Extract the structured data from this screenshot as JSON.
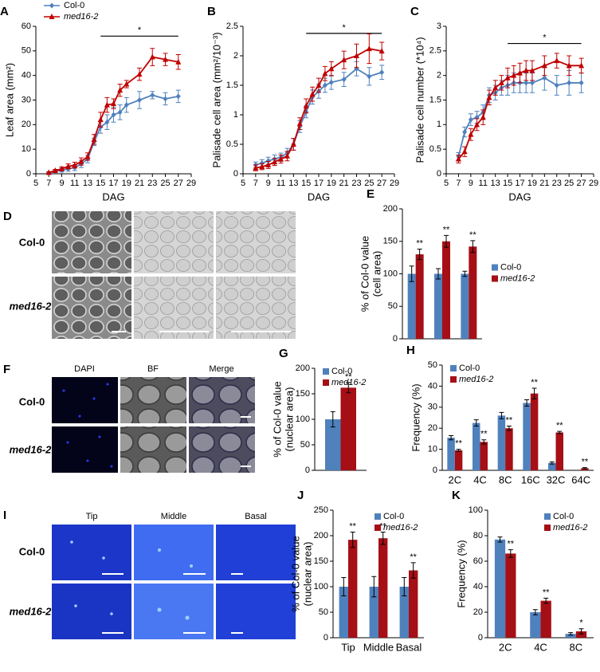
{
  "chart_data": [
    {
      "type": "line",
      "panel": "A",
      "xlabel": "DAG",
      "ylabel": [
        "Leaf area (mm²)"
      ],
      "x": [
        7,
        8,
        9,
        10,
        11,
        12,
        13,
        14,
        15,
        16,
        17,
        18,
        19,
        21,
        23,
        25,
        27
      ],
      "xlim": [
        5,
        29
      ],
      "xticks": [
        5,
        7,
        9,
        11,
        13,
        15,
        17,
        19,
        21,
        23,
        25,
        27,
        29
      ],
      "ylim": [
        0,
        60
      ],
      "yticks": [
        0,
        10,
        20,
        30,
        40,
        50,
        60
      ],
      "legend": "upper left",
      "annotation": {
        "text": "*",
        "x": [
          15,
          27
        ],
        "y": 56
      },
      "series": [
        {
          "name": "Col-0",
          "color": "#4f81bd",
          "marker": "diamond",
          "font_style": "normal",
          "values": [
            0.3,
            1,
            1.5,
            2,
            2.5,
            4,
            6,
            13,
            19,
            21,
            24,
            25,
            28,
            30,
            32,
            30.5,
            31.5
          ],
          "errors": [
            0.3,
            0.5,
            0.8,
            1,
            1.2,
            1.5,
            1.5,
            1.5,
            2.5,
            3,
            3,
            3,
            3,
            3.5,
            1.5,
            2.5,
            2.5
          ]
        },
        {
          "name": "med16-2",
          "color": "#c00000",
          "marker": "triangle",
          "font_style": "italic",
          "values": [
            0.5,
            1.3,
            2,
            3,
            3.5,
            5,
            7,
            14,
            22,
            28,
            28.5,
            34,
            36.5,
            40.5,
            47.5,
            46.5,
            45.5
          ],
          "errors": [
            0.3,
            0.5,
            0.8,
            1,
            1.2,
            1.5,
            1.5,
            2,
            3,
            3,
            2,
            2.5,
            1.5,
            2.5,
            3.5,
            2.5,
            3
          ]
        }
      ]
    },
    {
      "type": "line",
      "panel": "B",
      "xlabel": "DAG",
      "ylabel": [
        "Palisade cell area (mm²/10⁻³)"
      ],
      "x": [
        7,
        8,
        9,
        10,
        11,
        12,
        13,
        14,
        15,
        16,
        17,
        18,
        19,
        21,
        23,
        25,
        27
      ],
      "xlim": [
        5,
        29
      ],
      "xticks": [
        5,
        7,
        9,
        11,
        13,
        15,
        17,
        19,
        21,
        23,
        25,
        27,
        29
      ],
      "ylim": [
        0,
        2.5
      ],
      "yticks": [
        0,
        0.5,
        1,
        1.5,
        2,
        2.5
      ],
      "legend": "none",
      "annotation": {
        "text": "*",
        "x": [
          15,
          27
        ],
        "y": 2.38
      },
      "series": [
        {
          "name": "Col-0",
          "color": "#4f81bd",
          "marker": "diamond",
          "font_style": "normal",
          "values": [
            0.15,
            0.18,
            0.22,
            0.25,
            0.28,
            0.35,
            0.5,
            0.8,
            1.05,
            1.3,
            1.4,
            1.5,
            1.55,
            1.6,
            1.78,
            1.65,
            1.72
          ],
          "errors": [
            0.05,
            0.06,
            0.06,
            0.07,
            0.07,
            0.08,
            0.1,
            0.1,
            0.1,
            0.12,
            0.12,
            0.12,
            0.12,
            0.12,
            0.12,
            0.15,
            0.12
          ]
        },
        {
          "name": "med16-2",
          "color": "#c00000",
          "marker": "triangle",
          "font_style": "italic",
          "values": [
            0.1,
            0.12,
            0.15,
            0.2,
            0.25,
            0.3,
            0.5,
            0.85,
            1.15,
            1.35,
            1.5,
            1.7,
            1.78,
            1.93,
            2,
            2.12,
            2.08
          ],
          "errors": [
            0.05,
            0.05,
            0.06,
            0.06,
            0.07,
            0.08,
            0.1,
            0.1,
            0.12,
            0.12,
            0.12,
            0.12,
            0.12,
            0.15,
            0.2,
            0.25,
            0.15
          ]
        }
      ]
    },
    {
      "type": "line",
      "panel": "C",
      "xlabel": "DAG",
      "ylabel": [
        "Palisade cell number (*10⁴)"
      ],
      "x": [
        7,
        8,
        9,
        10,
        11,
        12,
        13,
        14,
        15,
        16,
        17,
        18,
        19,
        21,
        23,
        25,
        27
      ],
      "xlim": [
        5,
        29
      ],
      "xticks": [
        5,
        7,
        9,
        11,
        13,
        15,
        17,
        19,
        21,
        23,
        25,
        27,
        29
      ],
      "ylim": [
        0,
        3
      ],
      "yticks": [
        0,
        0.5,
        1,
        1.5,
        2,
        2.5,
        3
      ],
      "legend": "none",
      "annotation": {
        "text": "*",
        "x": [
          15,
          27
        ],
        "y": 2.65
      },
      "series": [
        {
          "name": "Col-0",
          "color": "#4f81bd",
          "marker": "diamond",
          "font_style": "normal",
          "values": [
            0.35,
            0.85,
            1.1,
            1.15,
            1.25,
            1.6,
            1.65,
            1.75,
            1.8,
            1.85,
            1.85,
            1.85,
            1.85,
            1.95,
            1.8,
            1.85,
            1.85
          ],
          "errors": [
            0.08,
            0.1,
            0.12,
            0.12,
            0.15,
            0.15,
            0.15,
            0.15,
            0.2,
            0.2,
            0.2,
            0.2,
            0.2,
            0.25,
            0.2,
            0.25,
            0.2
          ]
        },
        {
          "name": "med16-2",
          "color": "#c00000",
          "marker": "triangle",
          "font_style": "italic",
          "values": [
            0.3,
            0.45,
            0.8,
            1,
            1.15,
            1.55,
            1.75,
            1.85,
            1.95,
            2,
            2.05,
            2.1,
            2.1,
            2.2,
            2.3,
            2.2,
            2.2
          ],
          "errors": [
            0.08,
            0.1,
            0.12,
            0.12,
            0.15,
            0.15,
            0.15,
            0.15,
            0.2,
            0.2,
            0.2,
            0.2,
            0.2,
            0.2,
            0.15,
            0.2,
            0.15
          ]
        }
      ]
    },
    {
      "type": "bar",
      "panel": "E",
      "ylabel": [
        "% of Col-0 value",
        "(cell area)"
      ],
      "categories": [
        null,
        null,
        null
      ],
      "ylim": [
        0,
        200
      ],
      "yticks": [
        0,
        50,
        100,
        150,
        200
      ],
      "legend": "right",
      "series": [
        {
          "name": "Col-0",
          "color": "#4f81bd",
          "font_style": "normal",
          "values": [
            100,
            100,
            100
          ],
          "errors": [
            12,
            8,
            4
          ],
          "markers": [
            null,
            null,
            null
          ]
        },
        {
          "name": "med16-2",
          "color": "#a50f15",
          "font_style": "italic",
          "values": [
            130,
            150,
            142
          ],
          "errors": [
            8,
            9,
            9
          ],
          "markers": [
            "**",
            "**",
            "**"
          ]
        }
      ]
    },
    {
      "type": "bar",
      "panel": "G",
      "ylabel": [
        "% of Col-0 value",
        "(nuclear area)"
      ],
      "categories": [
        null
      ],
      "ylim": [
        0,
        200
      ],
      "yticks": [
        0,
        50,
        100,
        150,
        200
      ],
      "legend": "upper left",
      "series": [
        {
          "name": "Col-0",
          "color": "#4f81bd",
          "font_style": "normal",
          "values": [
            100
          ],
          "errors": [
            15
          ],
          "markers": [
            null
          ]
        },
        {
          "name": "med16-2",
          "color": "#a50f15",
          "font_style": "italic",
          "values": [
            162
          ],
          "errors": [
            10
          ],
          "markers": [
            "**"
          ]
        }
      ]
    },
    {
      "type": "bar",
      "panel": "H",
      "ylabel": [
        "Frequency (%)"
      ],
      "categories": [
        "2C",
        "4C",
        "8C",
        "16C",
        "32C",
        "64C"
      ],
      "ylim": [
        0,
        50
      ],
      "yticks": [
        0,
        10,
        20,
        30,
        40,
        50
      ],
      "legend": "upper left",
      "series": [
        {
          "name": "Col-0",
          "color": "#4f81bd",
          "font_style": "normal",
          "values": [
            15.5,
            22.5,
            26,
            32,
            3.5,
            0
          ],
          "errors": [
            1,
            1.5,
            1.5,
            1.5,
            0.5,
            0
          ],
          "markers": [
            null,
            null,
            null,
            null,
            null,
            null
          ]
        },
        {
          "name": "med16-2",
          "color": "#a50f15",
          "font_style": "italic",
          "values": [
            9.5,
            13.5,
            20,
            36.5,
            18,
            1
          ],
          "errors": [
            0.5,
            1,
            1,
            2.5,
            0.5,
            0.3
          ],
          "markers": [
            "**",
            "**",
            "**",
            "**",
            "**",
            "**"
          ]
        }
      ]
    },
    {
      "type": "bar",
      "panel": "J",
      "ylabel": [
        "% of Col-0 value",
        "(nuclear area)"
      ],
      "categories": [
        "Tip",
        "Middle",
        "Basal"
      ],
      "ylim": [
        0,
        250
      ],
      "yticks": [
        0,
        50,
        100,
        150,
        200,
        250
      ],
      "legend": "upper right",
      "series": [
        {
          "name": "Col-0",
          "color": "#4f81bd",
          "font_style": "normal",
          "values": [
            100,
            100,
            100
          ],
          "errors": [
            18,
            20,
            18
          ],
          "markers": [
            null,
            null,
            null
          ]
        },
        {
          "name": "med16-2",
          "color": "#a50f15",
          "font_style": "italic",
          "values": [
            192,
            195,
            132
          ],
          "errors": [
            15,
            12,
            15
          ],
          "markers": [
            "**",
            "**",
            "**"
          ]
        }
      ]
    },
    {
      "type": "bar",
      "panel": "K",
      "ylabel": [
        "Frequency (%)"
      ],
      "categories": [
        "2C",
        "4C",
        "8C"
      ],
      "ylim": [
        0,
        100
      ],
      "yticks": [
        0,
        20,
        40,
        60,
        80,
        100
      ],
      "legend": "upper right",
      "series": [
        {
          "name": "Col-0",
          "color": "#4f81bd",
          "font_style": "normal",
          "values": [
            77,
            20,
            3
          ],
          "errors": [
            2,
            2,
            1
          ],
          "markers": [
            null,
            null,
            null
          ]
        },
        {
          "name": "med16-2",
          "color": "#a50f15",
          "font_style": "italic",
          "values": [
            66,
            29,
            5
          ],
          "errors": [
            3,
            2,
            2
          ],
          "markers": [
            "**",
            "**",
            "*"
          ]
        }
      ]
    }
  ],
  "image_panels": [
    {
      "panel": "D",
      "rows": [
        "Col-0",
        "med16-2"
      ]
    },
    {
      "panel": "F",
      "columns": [
        "DAPI",
        "BF",
        "Merge"
      ],
      "rows": [
        "Col-0",
        "med16-2"
      ]
    },
    {
      "panel": "I",
      "columns": [
        "Tip",
        "Middle",
        "Basal"
      ],
      "rows": [
        "Col-0",
        "med16-2"
      ]
    }
  ]
}
